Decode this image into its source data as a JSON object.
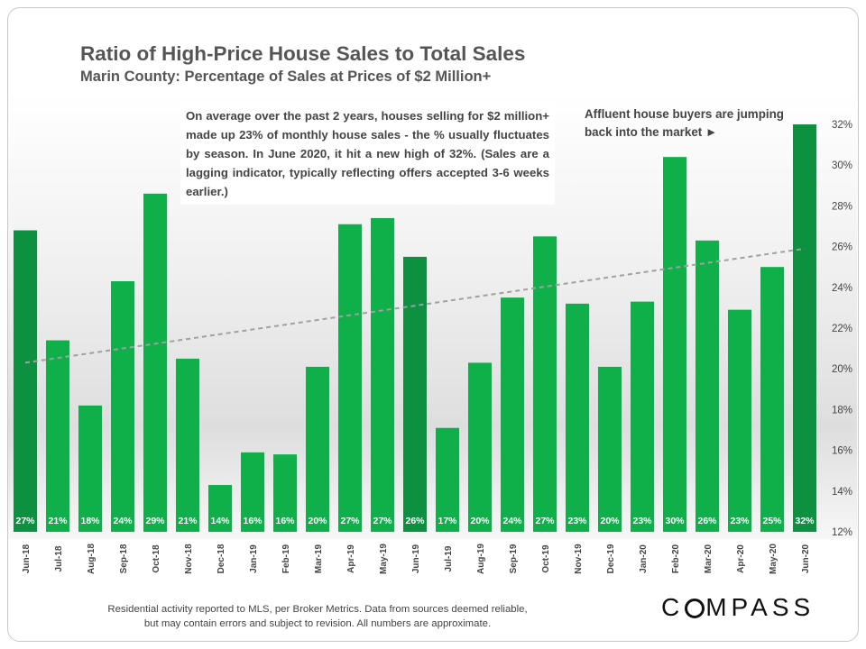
{
  "title": "Ratio of High-Price House Sales to Total Sales",
  "subtitle": "Marin County: Percentage of Sales at Prices of $2 Million+",
  "note": "On average over the past 2 years, houses selling for $2 million+ made up 23% of monthly house sales - the % usually fluctuates by season. In June 2020, it hit a new high of 32%. (Sales are a lagging indicator, typically reflecting offers accepted 3-6 weeks earlier.)",
  "callout": "Affluent house buyers are jumping back into the market ►",
  "footer_line1": "Residential activity reported to MLS, per Broker Metrics. Data from sources deemed reliable,",
  "footer_line2": "but may contain errors and subject to revision. All numbers are approximate.",
  "logo": "COMPASS",
  "colors": {
    "bar": "#0fb04a",
    "bar_highlight": "#0d9140",
    "trend": "#a0a0a0",
    "title": "#555555"
  },
  "chart_data": {
    "type": "bar",
    "title": "Ratio of High-Price House Sales to Total Sales",
    "categories": [
      "Jun-18",
      "Jul-18",
      "Aug-18",
      "Sep-18",
      "Oct-18",
      "Nov-18",
      "Dec-18",
      "Jan-19",
      "Feb-19",
      "Mar-19",
      "Apr-19",
      "May-19",
      "Jun-19",
      "Jul-19",
      "Aug-19",
      "Sep-19",
      "Oct-19",
      "Nov-19",
      "Dec-19",
      "Jan-20",
      "Feb-20",
      "Mar-20",
      "Apr-20",
      "May-20",
      "Jun-20"
    ],
    "values": [
      26.8,
      21.4,
      18.2,
      24.3,
      28.6,
      20.5,
      14.3,
      15.9,
      15.8,
      20.1,
      27.1,
      27.4,
      25.5,
      17.1,
      20.3,
      23.5,
      26.5,
      23.2,
      20.1,
      23.3,
      30.4,
      26.3,
      22.9,
      25.0,
      32.0
    ],
    "data_labels": [
      "27%",
      "21%",
      "18%",
      "24%",
      "29%",
      "21%",
      "14%",
      "16%",
      "16%",
      "20%",
      "27%",
      "27%",
      "26%",
      "17%",
      "20%",
      "24%",
      "27%",
      "23%",
      "20%",
      "23%",
      "30%",
      "26%",
      "23%",
      "25%",
      "32%"
    ],
    "highlight_indices": [
      0,
      12,
      24
    ],
    "ylim": [
      12,
      32
    ],
    "yticks": [
      "12%",
      "14%",
      "16%",
      "18%",
      "20%",
      "22%",
      "24%",
      "26%",
      "28%",
      "30%",
      "32%"
    ],
    "trendline": {
      "start": 20.3,
      "end": 25.9,
      "style": "dashed"
    },
    "y_axis_side": "right",
    "grid": false,
    "xlabel": "",
    "ylabel": ""
  }
}
